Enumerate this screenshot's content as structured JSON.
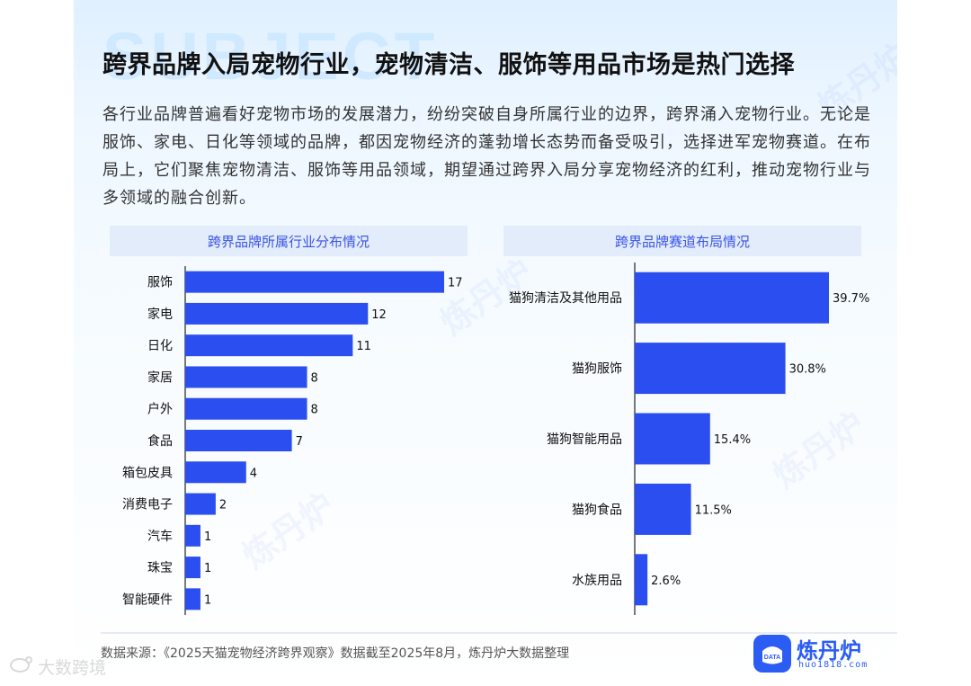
{
  "header": {
    "watermark": "SUBJECT",
    "title": "跨界品牌入局宠物行业，宠物清洁、服饰等用品市场是热门选择",
    "paragraph": "各行业品牌普遍看好宠物市场的发展潜力，纷纷突破自身所属行业的边界，跨界涌入宠物行业。无论是服饰、家电、日化等领域的品牌，都因宠物经济的蓬勃增长态势而备受吸引，选择进军宠物赛道。在布局上，它们聚焦宠物清洁、服饰等用品领域，期望通过跨界入局分享宠物经济的红利，推动宠物行业与多领域的融合创新。"
  },
  "chart_data": [
    {
      "type": "bar",
      "orientation": "horizontal",
      "title": "跨界品牌所属行业分布情况",
      "categories": [
        "服饰",
        "家电",
        "日化",
        "家居",
        "户外",
        "食品",
        "箱包皮具",
        "消费电子",
        "汽车",
        "珠宝",
        "智能硬件"
      ],
      "values": [
        17,
        12,
        11,
        8,
        8,
        7,
        4,
        2,
        1,
        1,
        1
      ],
      "labels": [
        "17",
        "12",
        "11",
        "8",
        "8",
        "7",
        "4",
        "2",
        "1",
        "1",
        "1"
      ],
      "xlim": [
        0,
        17
      ],
      "color": "#2b4ef0",
      "grid": false
    },
    {
      "type": "bar",
      "orientation": "horizontal",
      "title": "跨界品牌赛道布局情况",
      "categories": [
        "猫狗清洁及其他用品",
        "猫狗服饰",
        "猫狗智能用品",
        "猫狗食品",
        "水族用品"
      ],
      "values": [
        39.7,
        30.8,
        15.4,
        11.5,
        2.6
      ],
      "labels": [
        "39.7%",
        "30.8%",
        "15.4%",
        "11.5%",
        "2.6%"
      ],
      "xlim": [
        0,
        39.7
      ],
      "color": "#2b4ef0",
      "grid": false
    }
  ],
  "footer": {
    "source": "数据来源：《2025天猫宠物经济跨界观察》数据截至2025年8月，炼丹炉大数据整理",
    "logo_name": "炼丹炉",
    "logo_url": "huo1818.com",
    "logo_icon_text": "DATA"
  },
  "watermarks": {
    "brand": "炼丹炉",
    "outer": "大数跨境"
  }
}
